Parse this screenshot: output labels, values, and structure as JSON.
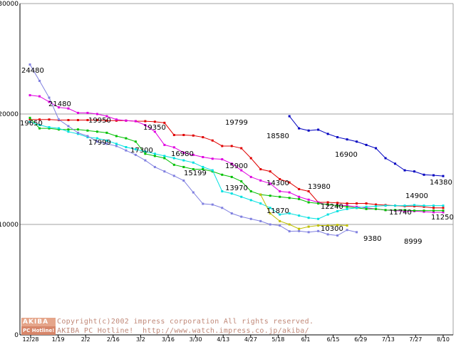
{
  "chart_data": {
    "type": "line",
    "title": "",
    "xlabel": "",
    "ylabel": "",
    "ylim": [
      0,
      30000
    ],
    "yticks": [
      0,
      10000,
      20000,
      30000
    ],
    "grid": "horizontal",
    "x_ticks": [
      "12/28",
      "1/19",
      "2/2",
      "2/16",
      "3/2",
      "3/16",
      "3/30",
      "4/13",
      "4/27",
      "5/18",
      "6/1",
      "6/15",
      "6/29",
      "7/13",
      "7/27",
      "8/10"
    ],
    "series": [
      {
        "name": "dark-blue",
        "color": "#0000c0",
        "values": [
          null,
          null,
          null,
          null,
          null,
          null,
          null,
          null,
          null,
          null,
          null,
          null,
          null,
          null,
          null,
          null,
          null,
          null,
          null,
          null,
          null,
          null,
          null,
          null,
          null,
          null,
          null,
          19799,
          18700,
          18500,
          18580,
          18200,
          17900,
          17700,
          17500,
          17200,
          16900,
          16000,
          15500,
          14900,
          14800,
          14500,
          14450,
          14380
        ]
      },
      {
        "name": "red",
        "color": "#e00000",
        "values": [
          19500,
          19500,
          19500,
          19450,
          19450,
          19450,
          19450,
          19450,
          19400,
          19400,
          19400,
          19350,
          19350,
          19300,
          19200,
          18100,
          18100,
          18050,
          17900,
          17600,
          17100,
          17100,
          16900,
          16000,
          15000,
          14800,
          14100,
          13800,
          13200,
          13000,
          12000,
          12000,
          11950,
          11900,
          11900,
          11900,
          11800,
          11750,
          11700,
          11650,
          11650,
          11600,
          11500,
          11500
        ]
      },
      {
        "name": "magenta",
        "color": "#e000e0",
        "values": [
          21700,
          21600,
          21100,
          20600,
          20500,
          20100,
          20100,
          20000,
          19800,
          19500,
          19400,
          19350,
          19000,
          18400,
          17200,
          16980,
          16500,
          16300,
          16100,
          15950,
          15900,
          15500,
          14900,
          14300,
          13980,
          13700,
          13000,
          12900,
          12500,
          12240,
          12000,
          11750,
          11740,
          11700,
          11600,
          11500,
          11400,
          11300,
          11250,
          11200,
          11200,
          11150,
          11100,
          11100
        ]
      },
      {
        "name": "green",
        "color": "#00c000",
        "values": [
          19650,
          18700,
          18700,
          18600,
          18600,
          18600,
          18500,
          18400,
          18300,
          18000,
          17800,
          17500,
          16400,
          16200,
          16000,
          15400,
          15200,
          15000,
          15000,
          14800,
          14500,
          14300,
          13900,
          13000,
          12700,
          12600,
          12500,
          12400,
          12300,
          12000,
          11900,
          11800,
          11700,
          11600,
          11500,
          11400,
          11400,
          11300,
          11300,
          11300,
          11250,
          11250,
          11250,
          11250
        ]
      },
      {
        "name": "cyan",
        "color": "#00e0e0",
        "values": [
          19300,
          19000,
          18800,
          18700,
          18400,
          18200,
          17900,
          17800,
          17600,
          17300,
          17000,
          16800,
          16600,
          16400,
          16200,
          16000,
          15800,
          15600,
          15200,
          14900,
          13000,
          12800,
          12500,
          12200,
          11900,
          11500,
          10900,
          11000,
          10800,
          10600,
          10500,
          10900,
          11200,
          11400,
          11500,
          11600,
          11650,
          11700,
          11700,
          11700,
          11750,
          11700,
          11700,
          11700
        ]
      },
      {
        "name": "lavender",
        "color": "#8080e0",
        "values": [
          24480,
          23000,
          21480,
          19500,
          18900,
          18300,
          17999,
          17500,
          17300,
          17100,
          16700,
          16300,
          15800,
          15199,
          14800,
          14400,
          13970,
          12900,
          11870,
          11800,
          11500,
          11000,
          10700,
          10500,
          10300,
          10000,
          9900,
          9380,
          9400,
          9300,
          9400,
          9100,
          8999,
          9500,
          9300
        ]
      },
      {
        "name": "olive",
        "color": "#c0c000",
        "values": [
          null,
          null,
          null,
          null,
          null,
          null,
          null,
          null,
          null,
          null,
          null,
          null,
          null,
          null,
          null,
          null,
          null,
          null,
          null,
          null,
          null,
          null,
          null,
          null,
          12700,
          11000,
          10300,
          10000,
          9600,
          9800,
          9900,
          9900,
          9950,
          9900
        ]
      }
    ],
    "data_labels": [
      "24480",
      "21480",
      "19650",
      "19950",
      "17999",
      "19350",
      "17300",
      "16980",
      "15199",
      "15900",
      "13970",
      "19799",
      "18580",
      "14300",
      "11870",
      "13980",
      "12240",
      "10300",
      "16900",
      "9380",
      "11740",
      "14900",
      "8999",
      "14380",
      "11250"
    ]
  },
  "footer": {
    "logo_top": "AKIBA",
    "logo_bottom": "PC Hotline!",
    "line1": "Copyright(c)2002 impress corporation All rights reserved.",
    "line2": "AKIBA PC Hotline!  http://www.watch.impress.co.jp/akiba/"
  }
}
